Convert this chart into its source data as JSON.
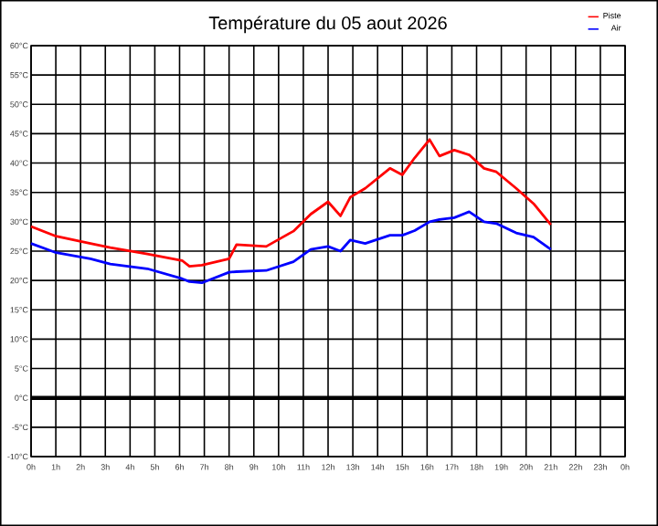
{
  "chart_data": {
    "type": "line",
    "title": "Température du 05 aout 2026",
    "x": [
      "2026-08-05T00:00",
      "2026-08-05T00:58",
      "2026-08-05T02:24",
      "2026-08-05T03:12",
      "2026-08-05T04:42",
      "2026-08-05T06:06",
      "2026-08-05T06:24",
      "2026-08-05T06:54",
      "2026-08-05T08:00",
      "2026-08-05T08:18",
      "2026-08-05T09:30",
      "2026-08-05T10:36",
      "2026-08-05T11:18",
      "2026-08-05T12:00",
      "2026-08-05T12:30",
      "2026-08-05T12:54",
      "2026-08-05T13:30",
      "2026-08-05T14:30",
      "2026-08-05T15:00",
      "2026-08-05T15:30",
      "2026-08-05T16:06",
      "2026-08-05T16:30",
      "2026-08-05T17:06",
      "2026-08-05T17:42",
      "2026-08-05T18:18",
      "2026-08-05T18:48",
      "2026-08-05T19:36",
      "2026-08-05T20:18",
      "2026-08-05T21:00"
    ],
    "series": [
      {
        "name": "Piste",
        "color": "#ff0000",
        "values": [
          29.2,
          27.6,
          26.3,
          25.6,
          24.5,
          23.4,
          22.4,
          22.6,
          23.7,
          26.1,
          25.8,
          28.4,
          31.3,
          33.4,
          31.0,
          34.2,
          35.7,
          39.1,
          38.0,
          40.9,
          44.0,
          41.2,
          42.2,
          41.4,
          39.1,
          38.5,
          35.7,
          33.1,
          29.5
        ]
      },
      {
        "name": "Air",
        "color": "#0000ff",
        "values": [
          26.3,
          24.8,
          23.7,
          22.8,
          22.0,
          20.3,
          19.8,
          19.6,
          21.4,
          21.5,
          21.7,
          23.2,
          25.3,
          25.8,
          25.0,
          26.9,
          26.3,
          27.7,
          27.7,
          28.5,
          30.0,
          30.4,
          30.7,
          31.7,
          30.0,
          29.7,
          28.1,
          27.4,
          25.3
        ]
      }
    ],
    "xlim": [
      "2026-08-05T00:00",
      "2026-08-06T00:00"
    ],
    "xticks": [
      {
        "value": "2026-08-05T00:00",
        "label": "0h"
      },
      {
        "value": "2026-08-05T01:00",
        "label": "1h"
      },
      {
        "value": "2026-08-05T02:00",
        "label": "2h"
      },
      {
        "value": "2026-08-05T03:00",
        "label": "3h"
      },
      {
        "value": "2026-08-05T04:00",
        "label": "4h"
      },
      {
        "value": "2026-08-05T05:00",
        "label": "5h"
      },
      {
        "value": "2026-08-05T06:00",
        "label": "6h"
      },
      {
        "value": "2026-08-05T07:00",
        "label": "7h"
      },
      {
        "value": "2026-08-05T08:00",
        "label": "8h"
      },
      {
        "value": "2026-08-05T09:00",
        "label": "9h"
      },
      {
        "value": "2026-08-05T10:00",
        "label": "10h"
      },
      {
        "value": "2026-08-05T11:00",
        "label": "11h"
      },
      {
        "value": "2026-08-05T12:00",
        "label": "12h"
      },
      {
        "value": "2026-08-05T13:00",
        "label": "13h"
      },
      {
        "value": "2026-08-05T14:00",
        "label": "14h"
      },
      {
        "value": "2026-08-05T15:00",
        "label": "15h"
      },
      {
        "value": "2026-08-05T16:00",
        "label": "16h"
      },
      {
        "value": "2026-08-05T17:00",
        "label": "17h"
      },
      {
        "value": "2026-08-05T18:00",
        "label": "18h"
      },
      {
        "value": "2026-08-05T19:00",
        "label": "19h"
      },
      {
        "value": "2026-08-05T20:00",
        "label": "20h"
      },
      {
        "value": "2026-08-05T21:00",
        "label": "21h"
      },
      {
        "value": "2026-08-05T22:00",
        "label": "22h"
      },
      {
        "value": "2026-08-05T23:00",
        "label": "23h"
      },
      {
        "value": "2026-08-06T00:00",
        "label": "0h"
      }
    ],
    "ylim": [
      -10,
      60
    ],
    "yticks": [
      {
        "value": -10,
        "label": "-10°C"
      },
      {
        "value": -5,
        "label": "-5°C"
      },
      {
        "value": 0,
        "label": "0°C"
      },
      {
        "value": 5,
        "label": "5°C"
      },
      {
        "value": 10,
        "label": "10°C"
      },
      {
        "value": 15,
        "label": "15°C"
      },
      {
        "value": 20,
        "label": "20°C"
      },
      {
        "value": 25,
        "label": "25°C"
      },
      {
        "value": 30,
        "label": "30°C"
      },
      {
        "value": 35,
        "label": "35°C"
      },
      {
        "value": 40,
        "label": "40°C"
      },
      {
        "value": 45,
        "label": "45°C"
      },
      {
        "value": 50,
        "label": "50°C"
      },
      {
        "value": 55,
        "label": "55°C"
      },
      {
        "value": 60,
        "label": "60°C"
      }
    ],
    "ref_lines": [
      {
        "axis": "y",
        "value": 0,
        "color": "#000000"
      }
    ],
    "grid": true,
    "legend": "top right",
    "marker": "none",
    "line_style": "solid"
  }
}
